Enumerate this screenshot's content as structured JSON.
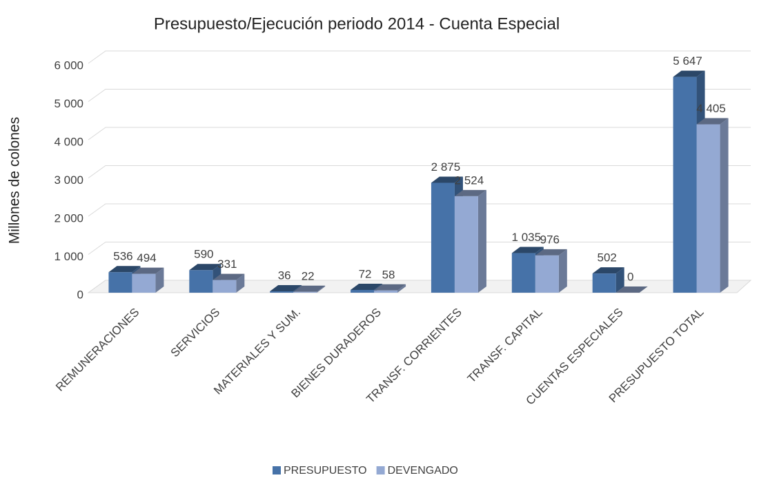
{
  "chart_data": {
    "type": "bar3d",
    "title": "Presupuesto/Ejecución periodo 2014 - Cuenta Especial",
    "y_label": "Millones de colones",
    "categories": [
      "REMUNERACIONES",
      "SERVICIOS",
      "MATERIALES Y SUM.",
      "BIENES DURADEROS",
      "TRANSF. CORRIENTES",
      "TRANSF. CAPITAL",
      "CUENTAS ESPECIALES",
      "PRESUPUESTO TOTAL"
    ],
    "series": [
      {
        "name": "PRESUPUESTO",
        "color": "#4672a8",
        "values": [
          536,
          590,
          36,
          72,
          2875,
          1035,
          502,
          5647
        ],
        "value_labels": [
          "536",
          "590",
          "36",
          "72",
          "2 875",
          "1 035",
          "502",
          "5 647"
        ]
      },
      {
        "name": "DEVENGADO",
        "color": "#94a9d3",
        "values": [
          494,
          331,
          22,
          58,
          2524,
          976,
          0,
          4405
        ],
        "value_labels": [
          "494",
          "331",
          "22",
          "58",
          "2 524",
          "976",
          "0",
          "4 405"
        ]
      }
    ],
    "ylim": [
      0,
      6000
    ],
    "yticks": [
      {
        "value": 0,
        "label": "0"
      },
      {
        "value": 1000,
        "label": "1 000"
      },
      {
        "value": 2000,
        "label": "2 000"
      },
      {
        "value": 3000,
        "label": "3 000"
      },
      {
        "value": 4000,
        "label": "4 000"
      },
      {
        "value": 5000,
        "label": "5 000"
      },
      {
        "value": 6000,
        "label": "6 000"
      }
    ],
    "grid": true,
    "legend": "bottom"
  }
}
